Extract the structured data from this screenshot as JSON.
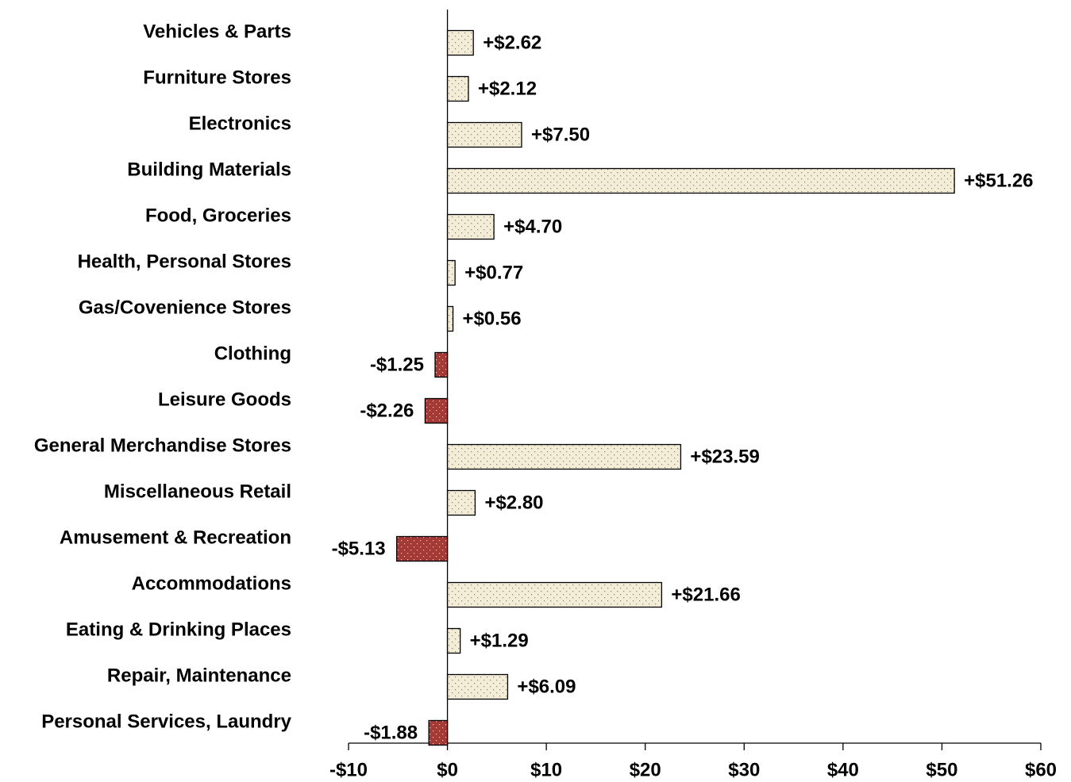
{
  "chart_data": {
    "type": "barh",
    "categories": [
      "Vehicles & Parts",
      "Furniture Stores",
      "Electronics",
      "Building Materials",
      "Food, Groceries",
      "Health, Personal Stores",
      "Gas/Covenience Stores",
      "Clothing",
      "Leisure Goods",
      "General Merchandise Stores",
      "Miscellaneous Retail",
      "Amusement & Recreation",
      "Accommodations",
      "Eating & Drinking Places",
      "Repair, Maintenance",
      "Personal Services, Laundry"
    ],
    "values": [
      2.62,
      2.12,
      7.5,
      51.26,
      4.7,
      0.77,
      0.56,
      -1.25,
      -2.26,
      23.59,
      2.8,
      -5.13,
      21.66,
      1.29,
      6.09,
      -1.88
    ],
    "value_labels": [
      "+$2.62",
      "+$2.12",
      "+$7.50",
      "+$51.26",
      "+$4.70",
      "+$0.77",
      "+$0.56",
      "-$1.25",
      "-$2.26",
      "+$23.59",
      "+$2.80",
      "-$5.13",
      "+$21.66",
      "+$1.29",
      "+$6.09",
      "-$1.88"
    ],
    "color": "#f3ecd6",
    "negative_color": "#a33a36",
    "xlim": [
      -10,
      60
    ],
    "xticks": [
      {
        "value": -10,
        "label": "-$10"
      },
      {
        "value": 0,
        "label": "$0"
      },
      {
        "value": 10,
        "label": "$10"
      },
      {
        "value": 20,
        "label": "$20"
      },
      {
        "value": 30,
        "label": "$30"
      },
      {
        "value": 40,
        "label": "$40"
      },
      {
        "value": 50,
        "label": "$50"
      },
      {
        "value": 60,
        "label": "$60"
      }
    ]
  }
}
